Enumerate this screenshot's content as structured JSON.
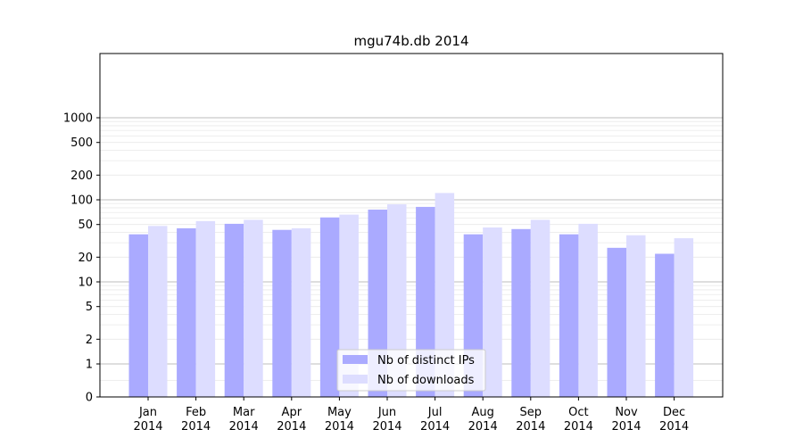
{
  "chart_data": {
    "type": "bar",
    "title": "mgu74b.db 2014",
    "xlabel": "",
    "ylabel": "",
    "yscale": "symlog",
    "ylim": [
      0,
      1300
    ],
    "yticks": [
      0,
      1,
      2,
      5,
      10,
      20,
      50,
      100,
      200,
      500,
      1000
    ],
    "ytick_labels": [
      "0",
      "1",
      "2",
      "5",
      "10",
      "20",
      "50",
      "100",
      "200",
      "500",
      "1000"
    ],
    "grid": "horizontal",
    "legend_position": "bottom-center",
    "categories": [
      "Jan\n2014",
      "Feb\n2014",
      "Mar\n2014",
      "Apr\n2014",
      "May\n2014",
      "Jun\n2014",
      "Jul\n2014",
      "Aug\n2014",
      "Sep\n2014",
      "Oct\n2014",
      "Nov\n2014",
      "Dec\n2014"
    ],
    "series": [
      {
        "name": "Nb of distinct IPs",
        "color": "#aaaaff",
        "values": [
          38,
          45,
          51,
          43,
          61,
          76,
          82,
          38,
          44,
          38,
          26,
          22
        ]
      },
      {
        "name": "Nb of downloads",
        "color": "#ddddff",
        "values": [
          48,
          55,
          57,
          45,
          66,
          88,
          121,
          46,
          57,
          51,
          37,
          34
        ]
      }
    ]
  }
}
